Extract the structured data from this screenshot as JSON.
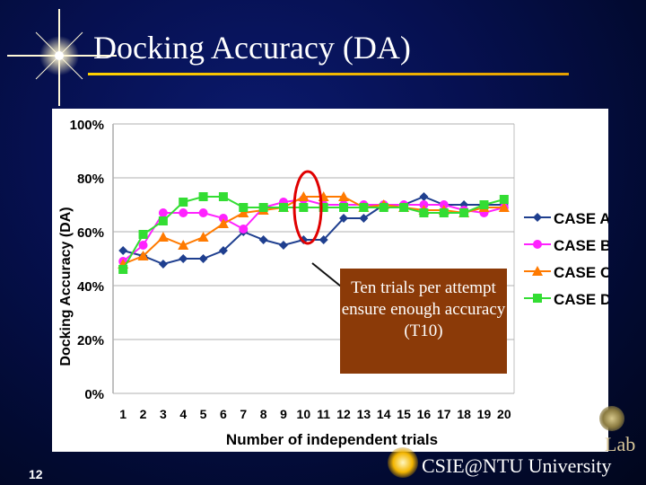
{
  "slide": {
    "title": "Docking Accuracy (DA)",
    "number": "12",
    "footer_lab": "Lab",
    "footer_university": "CSIE@NTU University"
  },
  "callout": {
    "text": "Ten trials per attempt ensure enough accuracy (T10)"
  },
  "colors": {
    "case_a": "#1f3f8f",
    "case_b": "#ff22ff",
    "case_c": "#ff7a00",
    "case_d": "#33dd33",
    "highlight_ellipse": "#e00000",
    "callout_bg": "#8b3a08"
  },
  "chart_data": {
    "type": "line",
    "title": "",
    "xlabel": "Number of independent trials",
    "ylabel": "Docking Accuracy (DA)",
    "categories": [
      "1",
      "2",
      "3",
      "4",
      "5",
      "6",
      "7",
      "8",
      "9",
      "10",
      "11",
      "12",
      "13",
      "14",
      "15",
      "16",
      "17",
      "18",
      "19",
      "20"
    ],
    "yticks": [
      "0%",
      "20%",
      "40%",
      "60%",
      "80%",
      "100%"
    ],
    "ylim": [
      0,
      100
    ],
    "legend_position": "right",
    "grid": "horizontal",
    "series": [
      {
        "name": "CASE A",
        "marker": "diamond",
        "values": [
          53,
          51,
          48,
          50,
          50,
          53,
          60,
          57,
          55,
          57,
          57,
          65,
          65,
          70,
          70,
          73,
          70,
          70,
          70,
          70
        ]
      },
      {
        "name": "CASE B",
        "marker": "circle",
        "values": [
          49,
          55,
          67,
          67,
          67,
          65,
          61,
          69,
          71,
          72,
          70,
          70,
          70,
          70,
          70,
          70,
          70,
          68,
          67,
          69
        ]
      },
      {
        "name": "CASE C",
        "marker": "triangle",
        "values": [
          48,
          51,
          58,
          55,
          58,
          63,
          67,
          68,
          69,
          73,
          73,
          73,
          69,
          70,
          69,
          68,
          68,
          67,
          69,
          69
        ]
      },
      {
        "name": "CASE D",
        "marker": "square",
        "values": [
          46,
          59,
          64,
          71,
          73,
          73,
          69,
          69,
          69,
          69,
          69,
          69,
          69,
          69,
          69,
          67,
          67,
          67,
          70,
          72
        ]
      }
    ]
  }
}
